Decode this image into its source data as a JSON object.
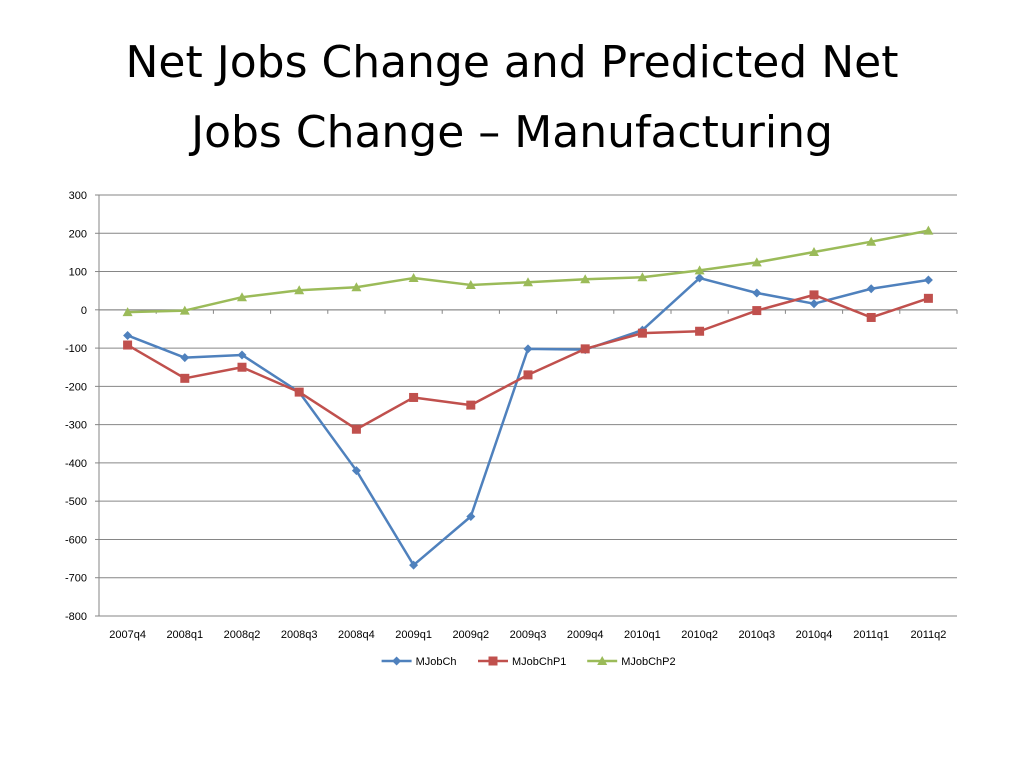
{
  "slide": {
    "title_line1": "Net Jobs Change and Predicted Net",
    "title_line2": "Jobs Change – Manufacturing"
  },
  "chart_data": {
    "type": "line",
    "title": "Net Jobs Change and Predicted Net Jobs Change – Manufacturing",
    "xlabel": "",
    "ylabel": "",
    "categories": [
      "2007q4",
      "2008q1",
      "2008q2",
      "2008q3",
      "2008q4",
      "2009q1",
      "2009q2",
      "2009q3",
      "2009q4",
      "2010q1",
      "2010q2",
      "2010q3",
      "2010q4",
      "2011q1",
      "2011q2"
    ],
    "ylim": [
      -800,
      300
    ],
    "yticks": [
      300,
      200,
      100,
      0,
      -100,
      -200,
      -300,
      -400,
      -500,
      -600,
      -700,
      -800
    ],
    "grid": true,
    "legend_position": "bottom",
    "series": [
      {
        "name": "MJobCh",
        "color": "#4F81BD",
        "marker": "diamond",
        "values": [
          -67,
          -125,
          -118,
          -215,
          -420,
          -667,
          -540,
          -102,
          -104,
          -53,
          83,
          44,
          16,
          55,
          78
        ]
      },
      {
        "name": "MJobChP1",
        "color": "#C0504D",
        "marker": "square",
        "values": [
          -92,
          -179,
          -150,
          -215,
          -312,
          -229,
          -249,
          -170,
          -102,
          -61,
          -56,
          -2,
          39,
          -20,
          30
        ]
      },
      {
        "name": "MJobChP2",
        "color": "#9BBB59",
        "marker": "triangle",
        "values": [
          -6,
          -2,
          33,
          51,
          59,
          83,
          65,
          72,
          80,
          85,
          103,
          124,
          151,
          178,
          207
        ]
      }
    ]
  }
}
